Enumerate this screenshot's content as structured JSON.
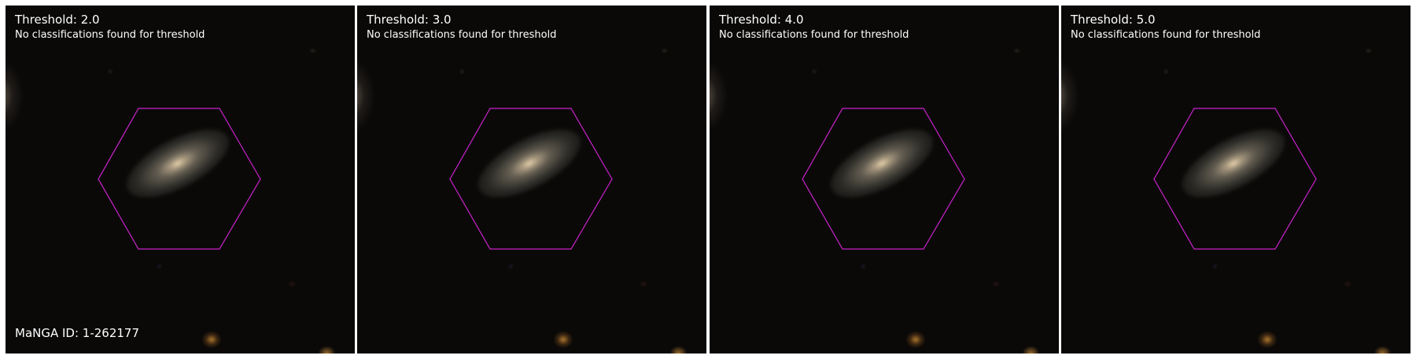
{
  "panels": [
    {
      "title": "Threshold: 2.0",
      "message": "No classifications found for threshold"
    },
    {
      "title": "Threshold: 3.0",
      "message": "No classifications found for threshold"
    },
    {
      "title": "Threshold: 4.0",
      "message": "No classifications found for threshold"
    },
    {
      "title": "Threshold: 5.0",
      "message": "No classifications found for threshold"
    }
  ],
  "manga_id_label": "MaNGA ID: 1-262177",
  "colors": {
    "hexagon": "#cc22cc",
    "text": "#ffffff",
    "sky": "#0a0908"
  }
}
